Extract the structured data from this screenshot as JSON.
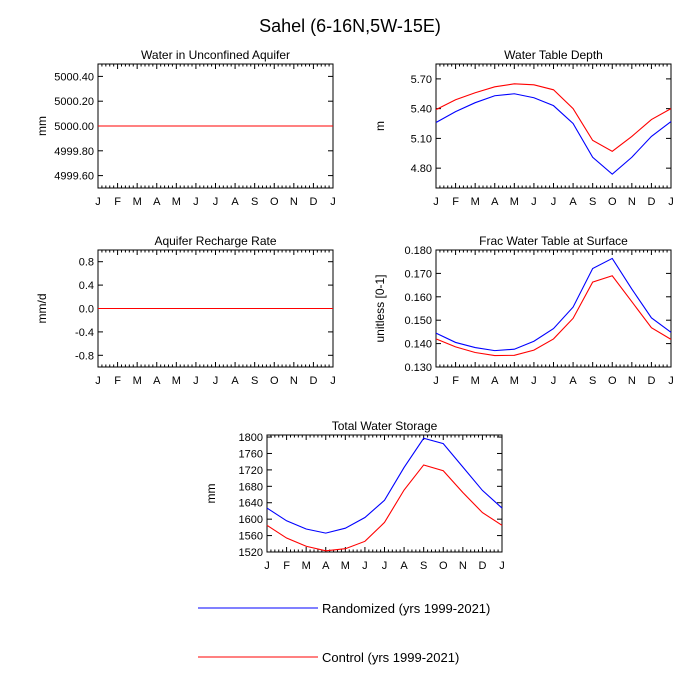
{
  "figure_title": "Sahel (6-16N,5W-15E)",
  "colors": {
    "randomized": "#0000ff",
    "control": "#ff0000",
    "axis": "#000000"
  },
  "legend": {
    "placement": "bottom-center",
    "entries": [
      {
        "label": "Randomized (yrs 1999-2021)",
        "color": "#0000ff"
      },
      {
        "label": "Control (yrs 1999-2021)",
        "color": "#ff0000"
      }
    ]
  },
  "chart_data": [
    {
      "type": "line",
      "title": "Water in Unconfined Aquifer",
      "ylabel": "mm",
      "xlabel": "",
      "categories": [
        "J",
        "F",
        "M",
        "A",
        "M",
        "J",
        "J",
        "A",
        "S",
        "O",
        "N",
        "D",
        "J"
      ],
      "ylim": [
        4999.5,
        5000.5
      ],
      "yticks": [
        "5000.40",
        "5000.20",
        "5000.00",
        "4999.80",
        "4999.60"
      ],
      "ytick_values": [
        5000.4,
        5000.2,
        5000.0,
        4999.8,
        4999.6
      ],
      "series": [
        {
          "name": "Randomized (yrs 1999-2021)",
          "color": "#0000ff",
          "values": [
            5000,
            5000,
            5000,
            5000,
            5000,
            5000,
            5000,
            5000,
            5000,
            5000,
            5000,
            5000,
            5000
          ]
        },
        {
          "name": "Control (yrs 1999-2021)",
          "color": "#ff0000",
          "values": [
            5000,
            5000,
            5000,
            5000,
            5000,
            5000,
            5000,
            5000,
            5000,
            5000,
            5000,
            5000,
            5000
          ]
        }
      ]
    },
    {
      "type": "line",
      "title": "Water Table Depth",
      "ylabel": "m",
      "xlabel": "",
      "categories": [
        "J",
        "F",
        "M",
        "A",
        "M",
        "J",
        "J",
        "A",
        "S",
        "O",
        "N",
        "D",
        "J"
      ],
      "ylim": [
        4.6,
        5.85
      ],
      "yticks": [
        "5.70",
        "5.40",
        "5.10",
        "4.80"
      ],
      "ytick_values": [
        5.7,
        5.4,
        5.1,
        4.8
      ],
      "series": [
        {
          "name": "Randomized (yrs 1999-2021)",
          "color": "#0000ff",
          "values": [
            5.26,
            5.37,
            5.46,
            5.53,
            5.55,
            5.51,
            5.43,
            5.25,
            4.91,
            4.74,
            4.91,
            5.12,
            5.27
          ]
        },
        {
          "name": "Control (yrs 1999-2021)",
          "color": "#ff0000",
          "values": [
            5.39,
            5.49,
            5.56,
            5.62,
            5.65,
            5.64,
            5.59,
            5.4,
            5.08,
            4.97,
            5.12,
            5.29,
            5.4
          ]
        }
      ]
    },
    {
      "type": "line",
      "title": "Aquifer Recharge Rate",
      "ylabel": "mm/d",
      "xlabel": "",
      "categories": [
        "J",
        "F",
        "M",
        "A",
        "M",
        "J",
        "J",
        "A",
        "S",
        "O",
        "N",
        "D",
        "J"
      ],
      "ylim": [
        -1.0,
        1.0
      ],
      "yticks": [
        "0.8",
        "0.4",
        "0.0",
        "-0.4",
        "-0.8"
      ],
      "ytick_values": [
        0.8,
        0.4,
        0.0,
        -0.4,
        -0.8
      ],
      "series": [
        {
          "name": "Randomized (yrs 1999-2021)",
          "color": "#0000ff",
          "values": [
            0,
            0,
            0,
            0,
            0,
            0,
            0,
            0,
            0,
            0,
            0,
            0,
            0
          ]
        },
        {
          "name": "Control (yrs 1999-2021)",
          "color": "#ff0000",
          "values": [
            0,
            0,
            0,
            0,
            0,
            0,
            0,
            0,
            0,
            0,
            0,
            0,
            0
          ]
        }
      ]
    },
    {
      "type": "line",
      "title": "Frac Water Table at Surface",
      "ylabel": "unitless [0-1]",
      "xlabel": "",
      "categories": [
        "J",
        "F",
        "M",
        "A",
        "M",
        "J",
        "J",
        "A",
        "S",
        "O",
        "N",
        "D",
        "J"
      ],
      "ylim": [
        0.13,
        0.18
      ],
      "yticks": [
        "0.180",
        "0.170",
        "0.160",
        "0.150",
        "0.140",
        "0.130"
      ],
      "ytick_values": [
        0.18,
        0.17,
        0.16,
        0.15,
        0.14,
        0.13
      ],
      "series": [
        {
          "name": "Randomized (yrs 1999-2021)",
          "color": "#0000ff",
          "values": [
            0.1445,
            0.1405,
            0.1383,
            0.137,
            0.1376,
            0.141,
            0.1464,
            0.1556,
            0.1721,
            0.1764,
            0.1633,
            0.151,
            0.1448
          ]
        },
        {
          "name": "Control (yrs 1999-2021)",
          "color": "#ff0000",
          "values": [
            0.142,
            0.1386,
            0.1362,
            0.1349,
            0.135,
            0.1372,
            0.142,
            0.1508,
            0.1663,
            0.169,
            0.1579,
            0.1468,
            0.1418
          ]
        }
      ]
    },
    {
      "type": "line",
      "title": "Total Water Storage",
      "ylabel": "mm",
      "xlabel": "",
      "categories": [
        "J",
        "F",
        "M",
        "A",
        "M",
        "J",
        "J",
        "A",
        "S",
        "O",
        "N",
        "D",
        "J"
      ],
      "ylim": [
        1520,
        1805
      ],
      "yticks": [
        "1800",
        "1760",
        "1720",
        "1680",
        "1640",
        "1600",
        "1560",
        "1520"
      ],
      "ytick_values": [
        1800,
        1760,
        1720,
        1680,
        1640,
        1600,
        1560,
        1520
      ],
      "series": [
        {
          "name": "Randomized (yrs 1999-2021)",
          "color": "#0000ff",
          "values": [
            1627,
            1596,
            1576,
            1566,
            1578,
            1604,
            1646,
            1726,
            1797,
            1784,
            1727,
            1670,
            1627
          ]
        },
        {
          "name": "Control (yrs 1999-2021)",
          "color": "#ff0000",
          "values": [
            1585,
            1554,
            1534,
            1523,
            1528,
            1546,
            1592,
            1671,
            1732,
            1718,
            1665,
            1616,
            1585
          ]
        }
      ]
    }
  ]
}
